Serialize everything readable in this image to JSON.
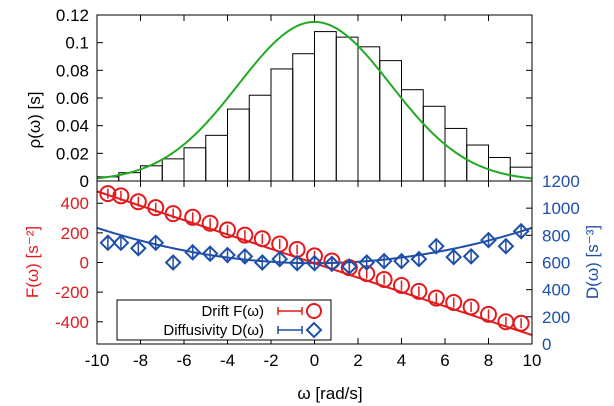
{
  "colors": {
    "drift": "#e31a1c",
    "diffusivity": "#1f4fa8",
    "gaussian": "#22aa22",
    "histogram": "#000000",
    "axis_right_label": "#1f4fa8",
    "axis_left_bottom_label": "#e31a1c"
  },
  "chart_data": [
    {
      "type": "bar",
      "panel": "top",
      "ylabel": "ρ(ω)    [s]",
      "xlim": [
        -10,
        10
      ],
      "ylim": [
        0,
        0.12
      ],
      "yticks": [
        "0",
        "0.02",
        "0.04",
        "0.06",
        "0.08",
        "0.1",
        "0.12"
      ],
      "bin_width": 1,
      "bin_centers": [
        -9.5,
        -8.5,
        -7.5,
        -6.5,
        -5.5,
        -4.5,
        -3.5,
        -2.5,
        -1.5,
        -0.5,
        0.5,
        1.5,
        2.5,
        3.5,
        4.5,
        5.5,
        6.5,
        7.5,
        8.5,
        9.5
      ],
      "values": [
        0.003,
        0.006,
        0.011,
        0.016,
        0.024,
        0.033,
        0.052,
        0.062,
        0.081,
        0.092,
        0.108,
        0.104,
        0.097,
        0.087,
        0.066,
        0.054,
        0.038,
        0.026,
        0.017,
        0.01
      ],
      "curve": {
        "name": "gaussian fit",
        "mu": 0,
        "sigma": 3.5,
        "peak": 0.115
      }
    },
    {
      "type": "scatter",
      "panel": "bottom",
      "xlabel": "ω     [rad/s]",
      "xlim": [
        -10,
        10
      ],
      "xticks": [
        "-10",
        "-8",
        "-6",
        "-4",
        "-2",
        "0",
        "2",
        "4",
        "6",
        "8",
        "10"
      ],
      "ylabel_left": "F(ω)    [s⁻²]",
      "ylim_left": [
        -550,
        550
      ],
      "yticks_left": [
        "-400",
        "-200",
        "0",
        "200",
        "400"
      ],
      "ylabel_right": "D(ω)    [s⁻³]",
      "ylim_right": [
        0,
        1200
      ],
      "yticks_right": [
        "0",
        "200",
        "400",
        "600",
        "800",
        "1000",
        "1200"
      ],
      "legend_position": "bottom-left",
      "series": [
        {
          "name": "Drift F(ω)",
          "axis": "left",
          "marker": "circle",
          "x": [
            -9.5,
            -8.9,
            -8.1,
            -7.3,
            -6.5,
            -5.6,
            -4.8,
            -4.0,
            -3.2,
            -2.4,
            -1.6,
            -0.8,
            0.0,
            0.8,
            1.6,
            2.4,
            3.2,
            4.0,
            4.8,
            5.6,
            6.4,
            7.2,
            8.0,
            8.8,
            9.5
          ],
          "y": [
            465,
            450,
            410,
            370,
            330,
            305,
            265,
            220,
            185,
            160,
            125,
            88,
            45,
            10,
            -35,
            -75,
            -115,
            -155,
            -195,
            -240,
            -270,
            -300,
            -350,
            -400,
            -410
          ],
          "fit": {
            "from": [
              -10,
              480
            ],
            "to": [
              10,
              -490
            ]
          }
        },
        {
          "name": "Diffusivity D(ω)",
          "axis": "right",
          "marker": "diamond",
          "x": [
            -9.5,
            -8.9,
            -8.1,
            -7.3,
            -6.5,
            -5.6,
            -4.8,
            -4.0,
            -3.2,
            -2.4,
            -1.6,
            -0.8,
            0.0,
            0.8,
            1.6,
            2.4,
            3.2,
            4.0,
            4.8,
            5.6,
            6.4,
            7.2,
            8.0,
            8.8,
            9.5
          ],
          "y": [
            745,
            745,
            705,
            745,
            600,
            675,
            665,
            655,
            645,
            600,
            625,
            595,
            595,
            590,
            570,
            600,
            610,
            610,
            625,
            720,
            640,
            645,
            765,
            720,
            830
          ],
          "fit": {
            "coeffs": [
              595,
              0,
              2.6
            ]
          }
        }
      ]
    }
  ]
}
